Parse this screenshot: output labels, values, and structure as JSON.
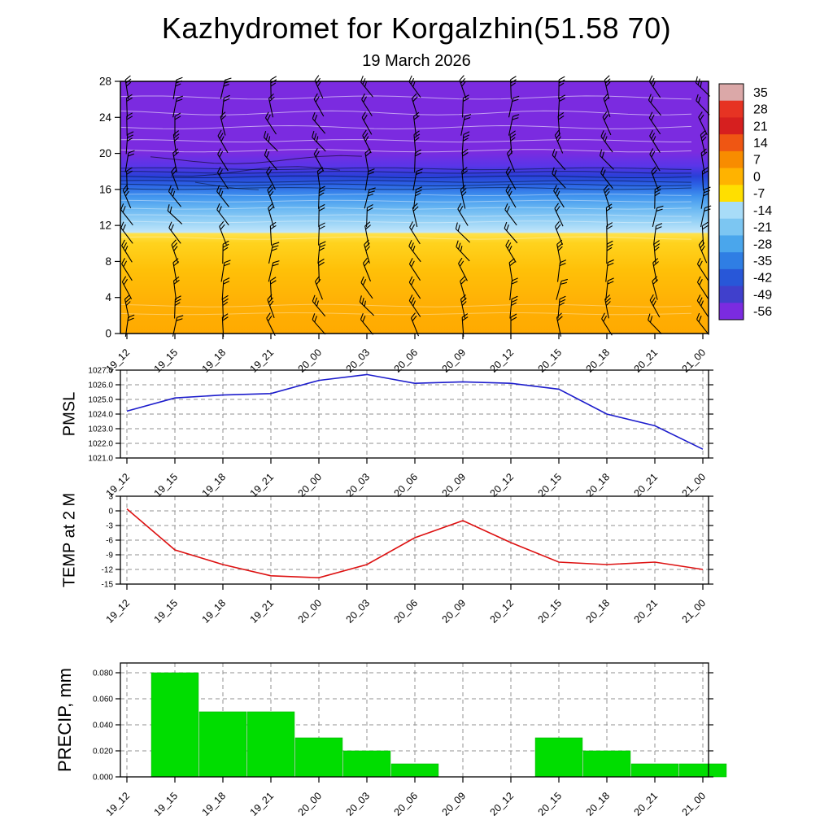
{
  "title": "Kazhydromet for Korgalzhin(51.58 70)",
  "subtitle": "19 March 2026",
  "time_labels": [
    "19_12",
    "19_15",
    "19_18",
    "19_21",
    "20_00",
    "20_03",
    "20_06",
    "20_09",
    "20_12",
    "20_15",
    "20_18",
    "20_21",
    "21_00"
  ],
  "colors": {
    "pmsl_line": "#1c1ccc",
    "temp_line": "#dd1111",
    "precip_bar": "#00dd00",
    "grid": "#909090",
    "axis": "#000000"
  },
  "chart_data": [
    {
      "id": "cross",
      "type": "heatmap",
      "name": "time-height-cross-section",
      "description": "Temperature shading by height with wind barbs",
      "ylim": [
        0,
        28
      ],
      "ytick_values": [
        0,
        4,
        8,
        12,
        16,
        20,
        24,
        28
      ],
      "ytick_labels": [
        "0",
        "4",
        "8",
        "12",
        "16",
        "20",
        "24",
        "28"
      ],
      "gradient_stops": [
        {
          "o": 0.0,
          "c": "#7b2be0"
        },
        {
          "o": 0.28,
          "c": "#7b2be0"
        },
        {
          "o": 0.335,
          "c": "#5a35e8"
        },
        {
          "o": 0.375,
          "c": "#2a3fd8"
        },
        {
          "o": 0.41,
          "c": "#2b62e4"
        },
        {
          "o": 0.455,
          "c": "#3f93ee"
        },
        {
          "o": 0.5,
          "c": "#66b5f2"
        },
        {
          "o": 0.555,
          "c": "#97d2f6"
        },
        {
          "o": 0.598,
          "c": "#c2e6fa"
        },
        {
          "o": 0.604,
          "c": "#ffe24d"
        },
        {
          "o": 0.64,
          "c": "#ffd31e"
        },
        {
          "o": 0.75,
          "c": "#ffc008"
        },
        {
          "o": 0.88,
          "c": "#ffb005"
        },
        {
          "o": 1.0,
          "c": "#ffaa00"
        }
      ],
      "colorbar": {
        "labels": [
          "35",
          "28",
          "21",
          "14",
          "7",
          "0",
          "-7",
          "-14",
          "-21",
          "-28",
          "-35",
          "-42",
          "-49",
          "-56"
        ],
        "colors": [
          "#dba8a8",
          "#e63323",
          "#d61f1f",
          "#ef5613",
          "#f88c00",
          "#ffb300",
          "#ffdf00",
          "#a8dcf8",
          "#7cc6f2",
          "#4aa6ec",
          "#2f7ee4",
          "#2857d8",
          "#4040cc",
          "#7b2be0"
        ]
      },
      "wind_barbs": {
        "columns": 13,
        "rows": 14
      }
    },
    {
      "id": "pmsl",
      "type": "line",
      "ylabel": "PMSL",
      "color": "#1c1ccc",
      "ylim": [
        1021,
        1027
      ],
      "ytick_values": [
        1027,
        1026,
        1025,
        1024,
        1023,
        1022,
        1021
      ],
      "ytick_labels": [
        "1027.0",
        "1026.0",
        "1025.0",
        "1024.0",
        "1023.0",
        "1022.0",
        "1021.0"
      ],
      "values": [
        1024.2,
        1025.1,
        1025.3,
        1025.4,
        1026.3,
        1026.7,
        1026.1,
        1026.2,
        1026.1,
        1025.7,
        1024.0,
        1023.2,
        1021.6
      ]
    },
    {
      "id": "temp2m",
      "type": "line",
      "ylabel": "TEMP at 2 M",
      "color": "#dd1111",
      "ylim": [
        -15,
        3
      ],
      "ytick_values": [
        3,
        0,
        -3,
        -6,
        -9,
        -12,
        -15
      ],
      "ytick_labels": [
        "3",
        "0",
        "-3",
        "-6",
        "-9",
        "-12",
        "-15"
      ],
      "values": [
        0.4,
        -8,
        -11,
        -13.3,
        -13.7,
        -11,
        -5.5,
        -2,
        -6.5,
        -10.5,
        -11,
        -10.5,
        -12
      ]
    },
    {
      "id": "precip",
      "type": "bar",
      "ylabel": "PRECIP, mm",
      "color": "#00dd00",
      "ylim": [
        0,
        0.0875
      ],
      "ytick_values": [
        0.08,
        0.06,
        0.04,
        0.02,
        0
      ],
      "ytick_labels": [
        "0.080",
        "0.060",
        "0.040",
        "0.020",
        "0.000"
      ],
      "values": [
        0,
        0.08,
        0.05,
        0.05,
        0.03,
        0.02,
        0.01,
        0,
        0,
        0.03,
        0.02,
        0.01,
        0.01
      ]
    }
  ]
}
